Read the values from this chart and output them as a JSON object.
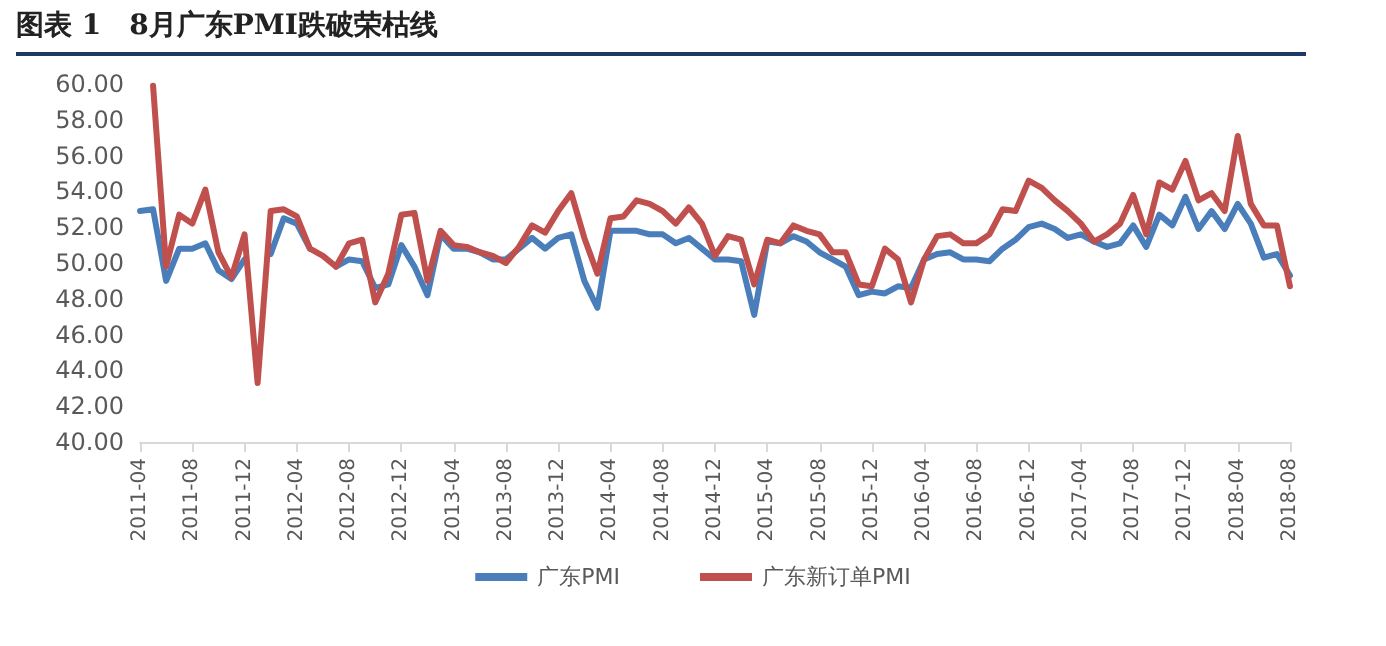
{
  "chart_data": {
    "type": "line",
    "title": "图表 1　8月广东PMI跌破荣枯线",
    "categories": [
      "2011-04",
      null,
      null,
      null,
      "2011-08",
      null,
      null,
      null,
      "2011-12",
      null,
      null,
      null,
      "2012-04",
      null,
      null,
      null,
      "2012-08",
      null,
      null,
      null,
      "2012-12",
      null,
      null,
      null,
      "2013-04",
      null,
      null,
      null,
      "2013-08",
      null,
      null,
      null,
      "2013-12",
      null,
      null,
      null,
      "2014-04",
      null,
      null,
      null,
      "2014-08",
      null,
      null,
      null,
      "2014-12",
      null,
      null,
      null,
      "2015-04",
      null,
      null,
      null,
      "2015-08",
      null,
      null,
      null,
      "2015-12",
      null,
      null,
      null,
      "2016-04",
      null,
      null,
      null,
      "2016-08",
      null,
      null,
      null,
      "2016-12",
      null,
      null,
      null,
      "2017-04",
      null,
      null,
      null,
      "2017-08",
      null,
      null,
      null,
      "2017-12",
      null,
      null,
      null,
      "2018-04",
      null,
      null,
      null,
      "2018-08"
    ],
    "series": [
      {
        "name": "广东PMI",
        "color": "#4a7ebb",
        "values": [
          52.9,
          53.0,
          49.0,
          50.8,
          50.8,
          51.1,
          49.6,
          49.1,
          50.2,
          null,
          50.5,
          52.5,
          52.2,
          50.8,
          null,
          49.8,
          50.2,
          50.1,
          48.6,
          48.8,
          51.0,
          49.8,
          48.2,
          51.6,
          50.8,
          50.8,
          50.6,
          50.2,
          50.2,
          50.8,
          51.4,
          50.8,
          51.4,
          51.6,
          49.0,
          47.5,
          51.8,
          51.8,
          51.8,
          51.6,
          51.6,
          51.1,
          51.4,
          50.8,
          50.2,
          50.2,
          50.1,
          47.1,
          51.2,
          51.1,
          51.5,
          51.2,
          50.6,
          50.2,
          49.8,
          48.2,
          48.4,
          48.3,
          48.7,
          48.6,
          50.2,
          50.5,
          50.6,
          50.2,
          50.2,
          50.1,
          50.8,
          51.3,
          52.0,
          52.2,
          51.9,
          51.4,
          51.6,
          51.2,
          50.9,
          51.1,
          52.1,
          50.9,
          52.7,
          52.1,
          53.7,
          51.9,
          52.9,
          51.9,
          53.3,
          52.2,
          50.3,
          50.5,
          49.3
        ]
      },
      {
        "name": "广东新订单PMI",
        "color": "#c0504d",
        "values": [
          null,
          59.9,
          49.8,
          52.7,
          52.2,
          54.1,
          50.6,
          49.2,
          51.6,
          43.3,
          52.9,
          53.0,
          52.6,
          50.8,
          50.4,
          49.8,
          51.1,
          51.3,
          47.8,
          49.4,
          52.7,
          52.8,
          49.0,
          51.8,
          51.0,
          50.9,
          50.6,
          50.4,
          50.0,
          50.9,
          52.1,
          51.7,
          52.9,
          53.9,
          51.4,
          49.4,
          52.5,
          52.6,
          53.5,
          53.3,
          52.9,
          52.2,
          53.1,
          52.2,
          50.4,
          51.5,
          51.3,
          48.8,
          51.3,
          51.1,
          52.1,
          51.8,
          51.6,
          50.6,
          50.6,
          48.8,
          48.7,
          50.8,
          50.2,
          47.8,
          50.2,
          51.5,
          51.6,
          51.1,
          51.1,
          51.6,
          53.0,
          52.9,
          54.6,
          54.2,
          53.5,
          52.9,
          52.2,
          51.2,
          51.6,
          52.2,
          53.8,
          51.6,
          54.5,
          54.1,
          55.7,
          53.5,
          53.9,
          52.9,
          57.1,
          53.3,
          52.1,
          52.1,
          48.7
        ]
      }
    ],
    "ylim": [
      40,
      60
    ],
    "yticks": [
      {
        "value": 40,
        "label": "40.00"
      },
      {
        "value": 42,
        "label": "42.00"
      },
      {
        "value": 44,
        "label": "44.00"
      },
      {
        "value": 46,
        "label": "46.00"
      },
      {
        "value": 48,
        "label": "48.00"
      },
      {
        "value": 50,
        "label": "50.00"
      },
      {
        "value": 52,
        "label": "52.00"
      },
      {
        "value": 54,
        "label": "54.00"
      },
      {
        "value": 56,
        "label": "56.00"
      },
      {
        "value": 58,
        "label": "58.00"
      },
      {
        "value": 60,
        "label": "60.00"
      }
    ],
    "grid": false,
    "legend": "bottom",
    "marker": "none",
    "line_style": "solid"
  }
}
